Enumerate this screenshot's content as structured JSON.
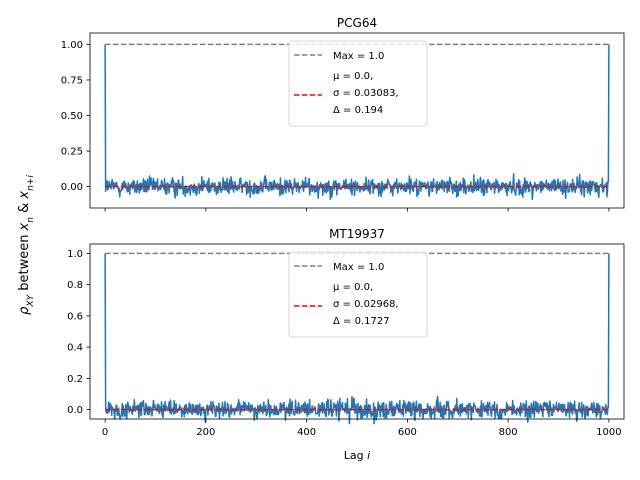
{
  "chart_data": [
    {
      "type": "line",
      "title": "PCG64",
      "xlabel": "Lag i",
      "ylabel": "ρXY between xn & xn+i",
      "xlim": [
        -30,
        1030
      ],
      "ylim": [
        -0.15,
        1.08
      ],
      "yticks": [
        0.0,
        0.25,
        0.5,
        0.75,
        1.0
      ],
      "ytick_labels": [
        "0.00",
        "0.25",
        "0.50",
        "0.75",
        "1.00"
      ],
      "xticks": [
        0,
        200,
        400,
        600,
        800,
        1000
      ],
      "noise_amplitude": 0.09,
      "series": [
        {
          "name": "",
          "kind": "autocorrelation",
          "color": "#1f77b4",
          "x_range": [
            0,
            1000
          ],
          "endpoints": [
            {
              "x": 0,
              "y": 1.0
            },
            {
              "x": 1000,
              "y": 1.0
            }
          ],
          "sigma": 0.03083
        },
        {
          "name": "Max = 1.0",
          "kind": "hline",
          "y": 1.0,
          "color": "#808080",
          "dash": true
        },
        {
          "name": "μ = 0.0, σ = 0.03083, Δ = 0.194",
          "kind": "hline",
          "y": 0.0,
          "color": "#ff0000",
          "dash": true
        }
      ],
      "legend": {
        "placement": "upper center",
        "entries": [
          {
            "label": "Max = 1.0",
            "color": "#808080"
          },
          {
            "label_lines": [
              "μ = 0.0,",
              "σ = 0.03083,",
              "Δ = 0.194"
            ],
            "color": "#ff0000"
          }
        ]
      }
    },
    {
      "type": "line",
      "title": "MT19937",
      "xlabel": "Lag i",
      "ylabel": "ρXY between xn & xn+i",
      "xlim": [
        -30,
        1030
      ],
      "ylim": [
        -0.06,
        1.06
      ],
      "yticks": [
        0.0,
        0.2,
        0.4,
        0.6,
        0.8,
        1.0
      ],
      "ytick_labels": [
        "0.0",
        "0.2",
        "0.4",
        "0.6",
        "0.8",
        "1.0"
      ],
      "xticks": [
        0,
        200,
        400,
        600,
        800,
        1000
      ],
      "xtick_labels": [
        "0",
        "200",
        "400",
        "600",
        "800",
        "1000"
      ],
      "noise_amplitude": 0.09,
      "series": [
        {
          "name": "",
          "kind": "autocorrelation",
          "color": "#1f77b4",
          "x_range": [
            0,
            1000
          ],
          "endpoints": [
            {
              "x": 0,
              "y": 1.0
            },
            {
              "x": 1000,
              "y": 1.0
            }
          ],
          "sigma": 0.02968
        },
        {
          "name": "Max = 1.0",
          "kind": "hline",
          "y": 1.0,
          "color": "#808080",
          "dash": true
        },
        {
          "name": "μ = 0.0, σ = 0.02968, Δ = 0.1727",
          "kind": "hline",
          "y": 0.0,
          "color": "#ff0000",
          "dash": true
        }
      ],
      "legend": {
        "placement": "upper center",
        "entries": [
          {
            "label": "Max = 1.0",
            "color": "#808080"
          },
          {
            "label_lines": [
              "μ = 0.0,",
              "σ = 0.02968,",
              "Δ = 0.1727"
            ],
            "color": "#ff0000"
          }
        ]
      }
    }
  ]
}
